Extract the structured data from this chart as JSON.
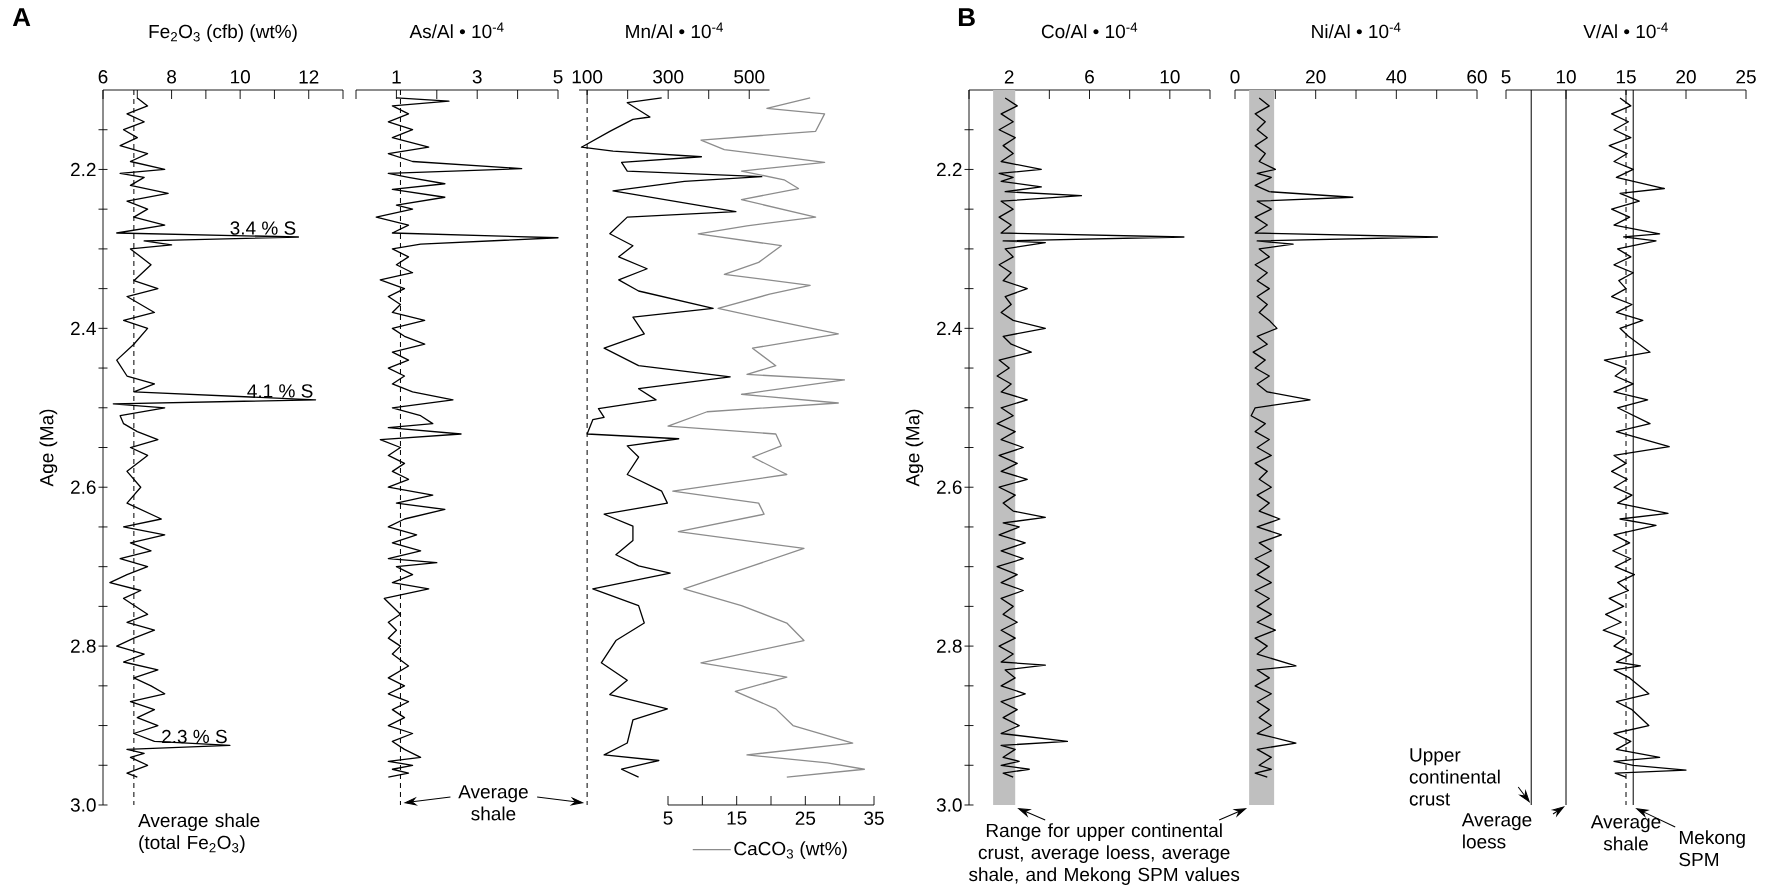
{
  "chart_data": [
    {
      "type": "line",
      "orientation": "horizontal",
      "xlabel": "Fe$_{2}$O$_{3}$ (cfb) (wt%)",
      "ylabel": "Age (Ma)",
      "annotations": [
        "A",
        {
          "text": "3.4 % S",
          "x": 11.7,
          "y": 2.285
        },
        {
          "text": "4.1 % S",
          "x": 12.2,
          "y": 2.49
        },
        {
          "text": "2.3 % S",
          "x": 9.7,
          "y": 2.925
        }
      ],
      "xlim": [
        6,
        13
      ],
      "xticks": [
        6,
        {
          "value": 7,
          "label": null
        },
        8,
        {
          "value": 9,
          "label": null
        },
        10,
        {
          "value": 11,
          "label": null
        },
        12,
        {
          "value": 13,
          "label": null
        }
      ],
      "ylim": [
        3.0,
        2.1
      ],
      "yticks": [
        {
          "value": 2.15,
          "label": null
        },
        2.2,
        {
          "value": 2.25,
          "label": null
        },
        {
          "value": 2.3,
          "label": null
        },
        {
          "value": 2.35,
          "label": null
        },
        2.4,
        {
          "value": 2.45,
          "label": null
        },
        {
          "value": 2.5,
          "label": null
        },
        {
          "value": 2.55,
          "label": null
        },
        2.6,
        {
          "value": 2.65,
          "label": null
        },
        {
          "value": 2.7,
          "label": null
        },
        {
          "value": 2.75,
          "label": null
        },
        2.8,
        {
          "value": 2.85,
          "label": null
        },
        {
          "value": 2.9,
          "label": null
        },
        {
          "value": 2.95,
          "label": null
        },
        {
          "value": 3,
          "label": "3.0"
        }
      ],
      "ref_lines": [
        {
          "axis": "x",
          "value": 6.9,
          "label": "Average shale (total Fe$_{2}$O$_{3}$)",
          "line_style": "dashed",
          "color": "#000000"
        }
      ],
      "series": [
        {
          "color": "#000000",
          "x": [
            2.11,
            2.12,
            2.13,
            2.14,
            2.15,
            2.16,
            2.17,
            2.18,
            2.19,
            2.2,
            2.205,
            2.21,
            2.22,
            2.23,
            2.24,
            2.25,
            2.26,
            2.27,
            2.28,
            2.285,
            2.29,
            2.295,
            2.3,
            2.32,
            2.34,
            2.35,
            2.36,
            2.38,
            2.39,
            2.4,
            2.42,
            2.44,
            2.46,
            2.47,
            2.48,
            2.49,
            2.495,
            2.5,
            2.51,
            2.52,
            2.53,
            2.54,
            2.55,
            2.56,
            2.58,
            2.6,
            2.62,
            2.64,
            2.65,
            2.66,
            2.67,
            2.68,
            2.69,
            2.7,
            2.71,
            2.72,
            2.73,
            2.74,
            2.76,
            2.77,
            2.78,
            2.79,
            2.8,
            2.81,
            2.82,
            2.83,
            2.84,
            2.85,
            2.86,
            2.87,
            2.88,
            2.89,
            2.9,
            2.91,
            2.92,
            2.925,
            2.93,
            2.935,
            2.94,
            2.95,
            2.96,
            2.965
          ],
          "values": [
            7.0,
            7.3,
            6.7,
            7.2,
            6.6,
            7.0,
            6.5,
            7.3,
            6.8,
            7.8,
            6.5,
            7.2,
            6.8,
            7.9,
            6.7,
            7.3,
            6.9,
            7.8,
            6.4,
            11.7,
            7.2,
            8.0,
            6.8,
            7.4,
            6.9,
            7.6,
            6.7,
            7.5,
            6.6,
            7.3,
            6.9,
            6.4,
            6.7,
            7.5,
            6.9,
            12.2,
            6.3,
            7.8,
            6.5,
            6.6,
            7.0,
            7.6,
            6.8,
            7.3,
            6.7,
            7.1,
            6.7,
            7.7,
            6.6,
            7.8,
            6.8,
            7.4,
            6.5,
            7.3,
            6.7,
            6.2,
            7.1,
            6.6,
            7.3,
            6.7,
            7.5,
            6.9,
            6.4,
            7.2,
            6.6,
            7.6,
            6.9,
            7.4,
            7.8,
            6.8,
            7.5,
            7.0,
            7.6,
            6.9,
            7.5,
            9.7,
            6.7,
            7.2,
            6.8,
            7.3,
            6.7,
            7.0
          ]
        }
      ]
    },
    {
      "type": "line",
      "orientation": "horizontal",
      "xlabel": "As/Al • 10$^{-4}$",
      "tick_labels": "x",
      "xlim": [
        0,
        5
      ],
      "xticks": [
        {
          "value": 0,
          "label": null
        },
        1,
        {
          "value": 2,
          "label": null
        },
        3,
        {
          "value": 4,
          "label": null
        },
        5
      ],
      "ylim": [
        3.0,
        2.1
      ],
      "ref_lines": [
        {
          "axis": "x",
          "value": 1.1,
          "label": "Average shale",
          "line_style": "dashed",
          "color": "#000000"
        }
      ],
      "series": [
        {
          "color": "#000000",
          "x": [
            2.11,
            2.114,
            2.12,
            2.13,
            2.14,
            2.15,
            2.16,
            2.172,
            2.18,
            2.19,
            2.199,
            2.205,
            2.21,
            2.218,
            2.225,
            2.235,
            2.245,
            2.25,
            2.26,
            2.27,
            2.28,
            2.286,
            2.294,
            2.3,
            2.31,
            2.32,
            2.33,
            2.339,
            2.35,
            2.36,
            2.37,
            2.38,
            2.39,
            2.4,
            2.41,
            2.42,
            2.43,
            2.44,
            2.45,
            2.46,
            2.47,
            2.48,
            2.49,
            2.5,
            2.51,
            2.52,
            2.525,
            2.533,
            2.54,
            2.55,
            2.56,
            2.57,
            2.58,
            2.59,
            2.6,
            2.61,
            2.62,
            2.628,
            2.64,
            2.65,
            2.66,
            2.67,
            2.68,
            2.69,
            2.695,
            2.7,
            2.71,
            2.72,
            2.728,
            2.74,
            2.75,
            2.76,
            2.77,
            2.78,
            2.79,
            2.8,
            2.81,
            2.825,
            2.84,
            2.85,
            2.86,
            2.87,
            2.88,
            2.89,
            2.9,
            2.91,
            2.92,
            2.93,
            2.94,
            2.945,
            2.95,
            2.955,
            2.96,
            2.965
          ],
          "values": [
            1.0,
            2.3,
            0.9,
            1.3,
            0.8,
            1.4,
            0.9,
            1.8,
            0.8,
            1.4,
            4.1,
            0.8,
            1.3,
            2.2,
            0.9,
            2.2,
            1.0,
            1.4,
            0.5,
            1.3,
            0.9,
            5.0,
            1.6,
            0.9,
            1.3,
            1.0,
            1.4,
            0.6,
            1.2,
            0.8,
            1.1,
            0.9,
            1.7,
            0.9,
            1.2,
            1.7,
            0.9,
            1.3,
            0.8,
            1.2,
            0.9,
            1.4,
            2.4,
            0.9,
            1.6,
            1.9,
            0.8,
            2.6,
            0.6,
            1.1,
            0.8,
            1.2,
            0.9,
            1.3,
            0.8,
            1.9,
            1.0,
            2.2,
            1.2,
            0.8,
            1.5,
            0.9,
            1.6,
            0.8,
            2.0,
            1.0,
            1.4,
            0.9,
            1.8,
            0.7,
            0.9,
            1.1,
            0.8,
            1.0,
            0.8,
            1.1,
            0.9,
            1.3,
            0.8,
            1.2,
            0.8,
            1.3,
            0.9,
            1.2,
            0.8,
            1.4,
            0.9,
            1.2,
            1.6,
            0.8,
            1.4,
            0.9,
            1.3,
            0.8
          ]
        }
      ]
    },
    {
      "type": "line",
      "orientation": "horizontal",
      "tick_labels": "x",
      "legend": "bottom",
      "x2lim": [
        5,
        35
      ],
      "x2ticks": [
        5,
        {
          "value": 10,
          "label": null
        },
        15,
        {
          "value": 20,
          "label": null
        },
        25,
        {
          "value": 30,
          "label": null
        },
        35
      ],
      "xlabel": "Mn/Al • 10$^{-4}$",
      "xlim": [
        80,
        550
      ],
      "xticks": [
        100,
        {
          "value": 200,
          "label": null
        },
        300,
        {
          "value": 400,
          "label": null
        },
        500
      ],
      "ylim": [
        3.0,
        2.1
      ],
      "ref_lines": [
        {
          "axis": "x",
          "value": 100,
          "line_style": "dashed",
          "color": "#000000"
        }
      ],
      "series": [
        {
          "color": "#000000",
          "x": [
            2.11,
            2.116,
            2.134,
            2.137,
            2.152,
            2.172,
            2.177,
            2.184,
            2.191,
            2.202,
            2.209,
            2.215,
            2.227,
            2.253,
            2.26,
            2.281,
            2.296,
            2.31,
            2.325,
            2.339,
            2.353,
            2.375,
            2.386,
            2.407,
            2.425,
            2.447,
            2.461,
            2.476,
            2.49,
            2.501,
            2.512,
            2.515,
            2.533,
            2.539,
            2.548,
            2.562,
            2.584,
            2.605,
            2.62,
            2.634,
            2.649,
            2.667,
            2.685,
            2.699,
            2.708,
            2.728,
            2.749,
            2.771,
            2.793,
            2.821,
            2.843,
            2.861,
            2.879,
            2.893,
            2.922,
            2.937,
            2.944,
            2.955,
            2.965
          ],
          "values": [
            284,
            199,
            255,
            213,
            156,
            86,
            164,
            382,
            185,
            199,
            531,
            340,
            164,
            467,
            199,
            156,
            213,
            178,
            248,
            178,
            227,
            411,
            213,
            241,
            142,
            227,
            453,
            227,
            270,
            128,
            142,
            114,
            100,
            326,
            199,
            227,
            199,
            284,
            298,
            142,
            213,
            213,
            171,
            227,
            305,
            114,
            227,
            241,
            171,
            135,
            199,
            156,
            298,
            213,
            199,
            142,
            277,
            185,
            227
          ]
        },
        {
          "name": "CaCO$_{3}$ (wt%)",
          "color": "#8c8c8c",
          "axis": "x2",
          "x": [
            2.11,
            2.123,
            2.13,
            2.152,
            2.163,
            2.175,
            2.191,
            2.202,
            2.213,
            2.224,
            2.238,
            2.26,
            2.271,
            2.281,
            2.296,
            2.317,
            2.332,
            2.346,
            2.357,
            2.375,
            2.389,
            2.407,
            2.425,
            2.447,
            2.458,
            2.465,
            2.483,
            2.494,
            2.505,
            2.523,
            2.533,
            2.548,
            2.562,
            2.584,
            2.605,
            2.62,
            2.634,
            2.656,
            2.677,
            2.699,
            2.728,
            2.749,
            2.771,
            2.793,
            2.821,
            2.839,
            2.857,
            2.879,
            2.9,
            2.922,
            2.937,
            2.947,
            2.955,
            2.965
          ],
          "values": [
            25.7,
            19.4,
            27.8,
            26.5,
            9.8,
            13.2,
            27.8,
            15.7,
            21.9,
            24.0,
            15.7,
            26.5,
            16.5,
            9.4,
            21.5,
            18.2,
            13.2,
            25.7,
            19.8,
            12.3,
            19.8,
            29.8,
            17.3,
            20.7,
            16.5,
            30.7,
            15.7,
            29.8,
            10.7,
            5.0,
            20.7,
            21.5,
            17.3,
            22.3,
            5.7,
            18.2,
            19.0,
            6.5,
            24.8,
            17.3,
            7.3,
            15.7,
            22.3,
            24.8,
            9.8,
            22.3,
            14.8,
            20.7,
            23.2,
            31.9,
            16.5,
            28.2,
            33.6,
            22.3
          ]
        }
      ]
    },
    {
      "type": "line",
      "orientation": "horizontal",
      "xlabel": "Co/Al • 10$^{-4}$",
      "ylabel": "Age (Ma)",
      "annotations": [
        "B"
      ],
      "xlim": [
        0,
        12
      ],
      "xticks": [
        {
          "value": 0,
          "label": null
        },
        2,
        {
          "value": 4,
          "label": null
        },
        6,
        {
          "value": 8,
          "label": null
        },
        10,
        {
          "value": 12,
          "label": null
        }
      ],
      "ylim": [
        3.0,
        2.1
      ],
      "yticks": [
        {
          "value": 2.15,
          "label": null
        },
        2.2,
        {
          "value": 2.25,
          "label": null
        },
        {
          "value": 2.3,
          "label": null
        },
        {
          "value": 2.35,
          "label": null
        },
        2.4,
        {
          "value": 2.45,
          "label": null
        },
        {
          "value": 2.5,
          "label": null
        },
        {
          "value": 2.55,
          "label": null
        },
        2.6,
        {
          "value": 2.65,
          "label": null
        },
        {
          "value": 2.7,
          "label": null
        },
        {
          "value": 2.75,
          "label": null
        },
        2.8,
        {
          "value": 2.85,
          "label": null
        },
        {
          "value": 2.9,
          "label": null
        },
        {
          "value": 2.95,
          "label": null
        },
        {
          "value": 3,
          "label": "3.0"
        }
      ],
      "bands": [
        {
          "axis": "x",
          "from": 1.2,
          "to": 2.3,
          "color": "#bfbfbf",
          "label": "Range for upper continental crust, average loess, average shale, and Mekong SPM values"
        }
      ],
      "series": [
        {
          "color": "#000000",
          "x": [
            2.11,
            2.12,
            2.13,
            2.14,
            2.15,
            2.16,
            2.17,
            2.18,
            2.19,
            2.2,
            2.205,
            2.21,
            2.215,
            2.222,
            2.228,
            2.233,
            2.24,
            2.25,
            2.26,
            2.27,
            2.28,
            2.285,
            2.29,
            2.292,
            2.3,
            2.31,
            2.32,
            2.33,
            2.34,
            2.35,
            2.36,
            2.37,
            2.38,
            2.39,
            2.4,
            2.41,
            2.42,
            2.43,
            2.44,
            2.45,
            2.46,
            2.47,
            2.48,
            2.49,
            2.5,
            2.51,
            2.52,
            2.53,
            2.54,
            2.55,
            2.56,
            2.57,
            2.58,
            2.59,
            2.6,
            2.61,
            2.62,
            2.63,
            2.638,
            2.645,
            2.65,
            2.66,
            2.67,
            2.68,
            2.69,
            2.7,
            2.71,
            2.72,
            2.73,
            2.74,
            2.75,
            2.76,
            2.77,
            2.78,
            2.79,
            2.8,
            2.81,
            2.82,
            2.824,
            2.83,
            2.84,
            2.85,
            2.86,
            2.87,
            2.88,
            2.89,
            2.9,
            2.91,
            2.92,
            2.925,
            2.93,
            2.94,
            2.945,
            2.95,
            2.955,
            2.96,
            2.965
          ],
          "values": [
            1.8,
            2.4,
            1.6,
            2.2,
            1.5,
            2.3,
            1.7,
            2.2,
            1.6,
            3.6,
            1.5,
            2.2,
            1.6,
            3.6,
            1.8,
            5.6,
            1.6,
            2.2,
            1.5,
            2.1,
            1.6,
            10.7,
            1.7,
            3.8,
            1.8,
            2.2,
            1.5,
            2.1,
            1.7,
            2.9,
            1.8,
            2.1,
            1.6,
            2.2,
            3.8,
            1.7,
            2.1,
            3.1,
            1.5,
            2.0,
            1.4,
            2.1,
            1.6,
            2.9,
            1.6,
            2.2,
            1.4,
            2.3,
            1.6,
            2.7,
            1.5,
            2.4,
            1.6,
            2.9,
            1.5,
            2.3,
            1.7,
            2.2,
            3.8,
            1.7,
            2.5,
            1.5,
            2.8,
            1.6,
            2.7,
            1.4,
            2.4,
            1.6,
            2.7,
            1.6,
            2.2,
            1.7,
            2.4,
            1.6,
            2.3,
            1.5,
            2.2,
            1.6,
            3.8,
            1.8,
            2.3,
            1.6,
            2.8,
            1.6,
            2.4,
            1.7,
            2.5,
            1.6,
            4.9,
            1.6,
            2.3,
            1.7,
            2.5,
            1.6,
            3.0,
            1.7,
            2.2
          ]
        }
      ]
    },
    {
      "type": "line",
      "orientation": "horizontal",
      "xlabel": "Ni/Al • 10$^{-4}$",
      "tick_labels": "x",
      "xlim": [
        0,
        60
      ],
      "xticks": [
        0,
        {
          "value": 10,
          "label": null
        },
        20,
        {
          "value": 30,
          "label": null
        },
        40,
        {
          "value": 50,
          "label": null
        },
        60
      ],
      "ylim": [
        3.0,
        2.1
      ],
      "bands": [
        {
          "axis": "x",
          "from": 3.5,
          "to": 9.7,
          "color": "#bfbfbf"
        }
      ],
      "series": [
        {
          "color": "#000000",
          "x": [
            2.11,
            2.12,
            2.13,
            2.14,
            2.15,
            2.16,
            2.17,
            2.18,
            2.19,
            2.2,
            2.205,
            2.21,
            2.22,
            2.228,
            2.235,
            2.24,
            2.25,
            2.26,
            2.27,
            2.28,
            2.285,
            2.29,
            2.294,
            2.3,
            2.31,
            2.32,
            2.33,
            2.34,
            2.35,
            2.36,
            2.37,
            2.38,
            2.39,
            2.4,
            2.41,
            2.42,
            2.43,
            2.44,
            2.45,
            2.46,
            2.47,
            2.48,
            2.49,
            2.5,
            2.51,
            2.52,
            2.53,
            2.54,
            2.55,
            2.56,
            2.57,
            2.58,
            2.59,
            2.6,
            2.61,
            2.62,
            2.63,
            2.64,
            2.65,
            2.66,
            2.67,
            2.68,
            2.69,
            2.7,
            2.71,
            2.72,
            2.73,
            2.74,
            2.75,
            2.76,
            2.77,
            2.78,
            2.79,
            2.8,
            2.81,
            2.825,
            2.83,
            2.84,
            2.85,
            2.86,
            2.87,
            2.88,
            2.89,
            2.9,
            2.91,
            2.922,
            2.93,
            2.94,
            2.95,
            2.955,
            2.96,
            2.965
          ],
          "values": [
            6.0,
            8.5,
            5.0,
            7.5,
            5.5,
            8.0,
            5.0,
            7.5,
            6.0,
            10.0,
            5.5,
            9.0,
            5.0,
            8.5,
            29.2,
            5.5,
            9.0,
            5.0,
            8.0,
            5.0,
            50.2,
            5.5,
            14.4,
            6.0,
            8.5,
            5.0,
            8.0,
            5.5,
            8.5,
            5.5,
            8.0,
            6.0,
            8.5,
            10.4,
            5.5,
            8.0,
            4.5,
            7.5,
            5.0,
            8.5,
            5.5,
            8.0,
            18.6,
            5.0,
            4.0,
            7.5,
            5.0,
            8.5,
            5.5,
            9.0,
            5.0,
            8.0,
            6.0,
            9.0,
            5.5,
            8.5,
            6.0,
            11.1,
            5.5,
            11.5,
            6.0,
            9.0,
            5.0,
            8.5,
            5.5,
            9.0,
            5.0,
            8.5,
            5.5,
            9.0,
            5.5,
            10.0,
            5.0,
            8.0,
            5.5,
            15.1,
            5.5,
            8.5,
            5.0,
            9.0,
            5.5,
            8.5,
            6.0,
            9.0,
            5.5,
            15.1,
            5.5,
            9.0,
            6.0,
            9.0,
            5.0,
            8.0
          ]
        }
      ]
    },
    {
      "type": "line",
      "orientation": "horizontal",
      "xlabel": "V/Al • 10$^{-4}$",
      "tick_labels": "x",
      "xlim": [
        5,
        25
      ],
      "xticks": [
        5,
        10,
        15,
        20,
        25
      ],
      "ylim": [
        3.0,
        2.1
      ],
      "ref_lines": [
        {
          "axis": "x",
          "value": 7.1,
          "label": "Upper continental crust",
          "line_style": "solid",
          "color": "#000000"
        },
        {
          "axis": "x",
          "value": 10,
          "label": "Average loess",
          "line_style": "solid",
          "color": "#000000"
        },
        {
          "axis": "x",
          "value": 15,
          "label": "Average shale",
          "line_style": "dashed",
          "color": "#000000"
        },
        {
          "axis": "x",
          "value": 15.6,
          "label": "Mekong SPM",
          "line_style": "solid",
          "color": "#000000"
        }
      ],
      "series": [
        {
          "color": "#000000",
          "x": [
            2.11,
            2.12,
            2.13,
            2.14,
            2.15,
            2.16,
            2.17,
            2.18,
            2.19,
            2.2,
            2.21,
            2.224,
            2.23,
            2.24,
            2.25,
            2.26,
            2.27,
            2.281,
            2.285,
            2.29,
            2.3,
            2.31,
            2.32,
            2.33,
            2.34,
            2.35,
            2.36,
            2.37,
            2.38,
            2.39,
            2.4,
            2.41,
            2.43,
            2.44,
            2.45,
            2.46,
            2.47,
            2.48,
            2.49,
            2.5,
            2.52,
            2.53,
            2.549,
            2.56,
            2.57,
            2.58,
            2.59,
            2.6,
            2.61,
            2.62,
            2.633,
            2.64,
            2.648,
            2.66,
            2.67,
            2.68,
            2.69,
            2.7,
            2.71,
            2.72,
            2.73,
            2.74,
            2.75,
            2.76,
            2.77,
            2.78,
            2.79,
            2.8,
            2.81,
            2.82,
            2.825,
            2.83,
            2.84,
            2.86,
            2.87,
            2.88,
            2.9,
            2.91,
            2.92,
            2.93,
            2.94,
            2.945,
            2.95,
            2.956,
            2.96,
            2.965
          ],
          "values": [
            14.5,
            15.4,
            13.8,
            15.2,
            14.0,
            15.4,
            13.6,
            15.1,
            14.0,
            15.6,
            14.2,
            18.2,
            14.5,
            16.1,
            13.8,
            15.3,
            14.0,
            17.8,
            14.8,
            17.5,
            14.3,
            15.4,
            14.0,
            15.6,
            14.4,
            15.0,
            13.8,
            15.5,
            14.2,
            16.4,
            14.5,
            15.2,
            17.0,
            13.2,
            15.0,
            14.1,
            15.6,
            14.0,
            16.8,
            14.3,
            17.0,
            14.2,
            18.6,
            14.0,
            15.0,
            13.8,
            15.1,
            14.0,
            15.5,
            14.3,
            18.5,
            14.5,
            17.5,
            14.0,
            15.3,
            13.9,
            15.4,
            14.1,
            15.7,
            14.3,
            15.2,
            13.6,
            14.8,
            13.3,
            14.6,
            13.1,
            14.9,
            14.0,
            15.5,
            14.2,
            16.2,
            14.0,
            15.3,
            16.9,
            14.2,
            15.5,
            16.9,
            14.0,
            15.4,
            14.2,
            17.8,
            14.0,
            15.6,
            20.0,
            14.1,
            15.0
          ]
        }
      ]
    }
  ]
}
